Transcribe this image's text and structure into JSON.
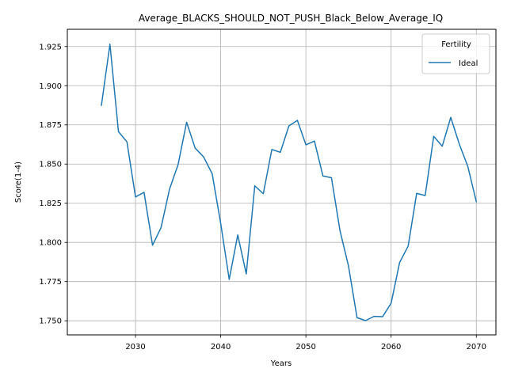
{
  "chart_data": {
    "type": "line",
    "title": "Average_BLACKS_SHOULD_NOT_PUSH_Black_Below_Average_IQ",
    "xlabel": "Years",
    "ylabel": "Score(1-4)",
    "xlim": [
      2022.0,
      2072.3
    ],
    "ylim": [
      1.741,
      1.936
    ],
    "xticks": [
      2030,
      2040,
      2050,
      2060,
      2070
    ],
    "xtick_labels": [
      "2030",
      "2040",
      "2050",
      "2060",
      "2070"
    ],
    "yticks": [
      1.75,
      1.775,
      1.8,
      1.825,
      1.85,
      1.875,
      1.9,
      1.925
    ],
    "ytick_labels": [
      "1.750",
      "1.775",
      "1.800",
      "1.825",
      "1.850",
      "1.875",
      "1.900",
      "1.925"
    ],
    "grid": true,
    "legend": {
      "title": "Fertility",
      "placement": "top-right"
    },
    "series": [
      {
        "name": "Ideal",
        "color": "#1f77b4",
        "x": [
          2026,
          2027,
          2028,
          2029,
          2030,
          2031,
          2032,
          2033,
          2034,
          2035,
          2036,
          2037,
          2038,
          2039,
          2040,
          2041,
          2042,
          2043,
          2044,
          2045,
          2046,
          2047,
          2048,
          2049,
          2050,
          2051,
          2052,
          2053,
          2054,
          2055,
          2056,
          2057,
          2058,
          2059,
          2060,
          2061,
          2062,
          2063,
          2064,
          2065,
          2066,
          2067,
          2068,
          2069,
          2070
        ],
        "y": [
          1.8875,
          1.9265,
          1.8707,
          1.8641,
          1.829,
          1.832,
          1.7982,
          1.8095,
          1.8341,
          1.8497,
          1.8767,
          1.8602,
          1.8545,
          1.8438,
          1.8121,
          1.7764,
          1.8048,
          1.7799,
          1.8361,
          1.8311,
          1.8593,
          1.8575,
          1.8743,
          1.8779,
          1.8623,
          1.8647,
          1.8424,
          1.8413,
          1.8075,
          1.7849,
          1.752,
          1.7501,
          1.7528,
          1.7526,
          1.7612,
          1.7872,
          1.7976,
          1.8313,
          1.8299,
          1.8677,
          1.8614,
          1.8798,
          1.8628,
          1.8485,
          1.826
        ]
      }
    ]
  }
}
